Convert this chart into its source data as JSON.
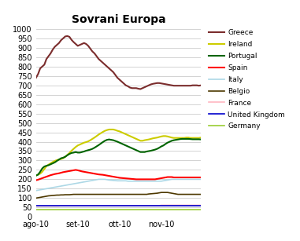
{
  "title": "Sovrani Europa",
  "xlim": [
    0,
    79
  ],
  "ylim": [
    0,
    1000
  ],
  "yticks": [
    0,
    50,
    100,
    150,
    200,
    250,
    300,
    350,
    400,
    450,
    500,
    550,
    600,
    650,
    700,
    750,
    800,
    850,
    900,
    950,
    1000
  ],
  "xtick_positions": [
    0,
    20,
    40,
    60
  ],
  "xtick_labels": [
    "ago-10",
    "set-10",
    "ott-10",
    "nov-10"
  ],
  "background_color": "#ffffff",
  "plot_area_color": "#ffffff",
  "grid_color": "#cccccc",
  "series": {
    "Greece": {
      "color": "#7B2D2D",
      "lw": 1.5,
      "data": [
        740,
        760,
        790,
        800,
        810,
        840,
        855,
        870,
        890,
        905,
        915,
        925,
        940,
        950,
        960,
        962,
        958,
        942,
        930,
        920,
        910,
        915,
        920,
        925,
        920,
        910,
        895,
        880,
        870,
        855,
        840,
        830,
        820,
        810,
        800,
        790,
        780,
        770,
        755,
        740,
        730,
        720,
        710,
        700,
        695,
        688,
        685,
        685,
        685,
        682,
        680,
        685,
        690,
        695,
        700,
        705,
        708,
        710,
        712,
        712,
        710,
        708,
        706,
        704,
        702,
        700,
        698,
        698,
        698,
        698,
        698,
        698,
        698,
        698,
        698,
        700,
        700,
        700,
        698,
        700
      ]
    },
    "Ireland": {
      "color": "#CCCC00",
      "lw": 1.5,
      "data": [
        220,
        225,
        230,
        240,
        255,
        270,
        278,
        285,
        292,
        298,
        302,
        305,
        308,
        312,
        320,
        330,
        340,
        352,
        362,
        372,
        380,
        385,
        390,
        395,
        398,
        402,
        408,
        415,
        422,
        430,
        438,
        445,
        452,
        458,
        462,
        465,
        465,
        465,
        462,
        458,
        455,
        450,
        445,
        440,
        435,
        430,
        425,
        420,
        415,
        410,
        405,
        405,
        408,
        410,
        412,
        415,
        418,
        420,
        422,
        425,
        428,
        430,
        430,
        428,
        425,
        422,
        420,
        420,
        420,
        420,
        420,
        420,
        422,
        422,
        420,
        420,
        420,
        420,
        420,
        422
      ]
    },
    "Portugal": {
      "color": "#006400",
      "lw": 1.5,
      "data": [
        220,
        225,
        240,
        258,
        268,
        272,
        275,
        280,
        285,
        290,
        298,
        305,
        312,
        315,
        320,
        328,
        335,
        340,
        342,
        345,
        342,
        342,
        345,
        348,
        352,
        355,
        358,
        362,
        368,
        375,
        382,
        390,
        398,
        405,
        410,
        412,
        410,
        408,
        404,
        400,
        395,
        390,
        385,
        380,
        375,
        370,
        365,
        360,
        355,
        350,
        345,
        345,
        345,
        348,
        350,
        352,
        355,
        358,
        362,
        368,
        375,
        380,
        388,
        395,
        400,
        405,
        408,
        410,
        412,
        414,
        415,
        415,
        415,
        415,
        414,
        413,
        413,
        413,
        413,
        412
      ]
    },
    "Spain": {
      "color": "#FF0000",
      "lw": 1.5,
      "data": [
        195,
        198,
        202,
        206,
        210,
        214,
        218,
        222,
        225,
        228,
        230,
        232,
        235,
        238,
        240,
        242,
        244,
        246,
        248,
        250,
        248,
        245,
        242,
        240,
        238,
        236,
        234,
        232,
        230,
        228,
        226,
        225,
        224,
        222,
        220,
        218,
        216,
        214,
        212,
        210,
        208,
        207,
        206,
        205,
        204,
        203,
        202,
        201,
        200,
        200,
        200,
        200,
        200,
        200,
        200,
        200,
        200,
        200,
        202,
        204,
        206,
        208,
        210,
        212,
        212,
        212,
        210,
        210,
        210,
        210,
        210,
        210,
        210,
        210,
        210,
        210,
        210,
        210,
        210,
        210
      ]
    },
    "Italy": {
      "color": "#ADD8E6",
      "lw": 1.2,
      "data": [
        140,
        142,
        144,
        146,
        148,
        150,
        152,
        154,
        156,
        158,
        160,
        162,
        164,
        166,
        168,
        170,
        172,
        174,
        176,
        178,
        180,
        182,
        184,
        186,
        188,
        190,
        192,
        194,
        196,
        198,
        200,
        200,
        200,
        200,
        198,
        196,
        195,
        194,
        193,
        192,
        192,
        192,
        192,
        192,
        190,
        190,
        190,
        190,
        190,
        190,
        190,
        190,
        190,
        190,
        190,
        190,
        190,
        190,
        190,
        190,
        190,
        192,
        194,
        196,
        198,
        200,
        200,
        200,
        200,
        200,
        200,
        200,
        200,
        200,
        200,
        200,
        200,
        200,
        200,
        200
      ]
    },
    "Belgio": {
      "color": "#4D3800",
      "lw": 1.2,
      "data": [
        100,
        102,
        104,
        106,
        108,
        110,
        112,
        113,
        114,
        115,
        116,
        116,
        117,
        117,
        118,
        118,
        118,
        119,
        120,
        120,
        120,
        120,
        120,
        120,
        120,
        120,
        120,
        120,
        120,
        120,
        120,
        120,
        120,
        120,
        120,
        120,
        120,
        120,
        120,
        120,
        120,
        120,
        120,
        120,
        120,
        120,
        120,
        120,
        120,
        120,
        120,
        120,
        120,
        120,
        122,
        123,
        124,
        125,
        126,
        128,
        130,
        130,
        130,
        130,
        128,
        126,
        124,
        122,
        120,
        120,
        120,
        120,
        120,
        120,
        120,
        120,
        120,
        120,
        120,
        120
      ]
    },
    "France": {
      "color": "#FFB6C1",
      "lw": 1.2,
      "data": [
        58,
        58,
        58,
        58,
        58,
        58,
        58,
        58,
        58,
        58,
        58,
        58,
        60,
        60,
        60,
        60,
        60,
        60,
        60,
        60,
        60,
        60,
        60,
        60,
        60,
        60,
        60,
        60,
        60,
        60,
        60,
        60,
        60,
        60,
        60,
        60,
        60,
        60,
        60,
        60,
        60,
        60,
        60,
        60,
        60,
        60,
        60,
        60,
        60,
        60,
        60,
        60,
        60,
        60,
        60,
        60,
        60,
        60,
        60,
        60,
        62,
        62,
        62,
        62,
        62,
        62,
        62,
        62,
        62,
        62,
        62,
        62,
        62,
        62,
        62,
        62,
        62,
        62,
        62,
        62
      ]
    },
    "United Kingdom": {
      "color": "#0000CC",
      "lw": 1.2,
      "data": [
        60,
        60,
        60,
        60,
        60,
        60,
        60,
        60,
        60,
        60,
        60,
        60,
        60,
        60,
        60,
        60,
        60,
        60,
        60,
        60,
        60,
        60,
        60,
        60,
        60,
        60,
        60,
        60,
        60,
        60,
        60,
        60,
        60,
        60,
        60,
        60,
        60,
        60,
        60,
        60,
        60,
        60,
        60,
        60,
        60,
        60,
        60,
        60,
        60,
        60,
        60,
        60,
        60,
        60,
        60,
        60,
        60,
        60,
        60,
        60,
        60,
        60,
        60,
        60,
        60,
        60,
        60,
        60,
        60,
        60,
        60,
        60,
        60,
        60,
        60,
        60,
        60,
        60,
        60,
        60
      ]
    },
    "Germany": {
      "color": "#9ACD32",
      "lw": 1.2,
      "data": [
        40,
        40,
        40,
        40,
        40,
        40,
        40,
        40,
        40,
        40,
        40,
        40,
        40,
        40,
        40,
        40,
        40,
        40,
        40,
        40,
        40,
        40,
        40,
        40,
        40,
        40,
        40,
        40,
        40,
        40,
        40,
        40,
        40,
        40,
        40,
        40,
        40,
        40,
        40,
        40,
        40,
        40,
        40,
        40,
        40,
        40,
        40,
        40,
        40,
        40,
        40,
        40,
        40,
        40,
        40,
        40,
        40,
        40,
        40,
        40,
        40,
        40,
        40,
        40,
        40,
        40,
        40,
        40,
        40,
        40,
        40,
        40,
        40,
        40,
        40,
        40,
        40,
        40,
        40,
        40
      ]
    }
  }
}
